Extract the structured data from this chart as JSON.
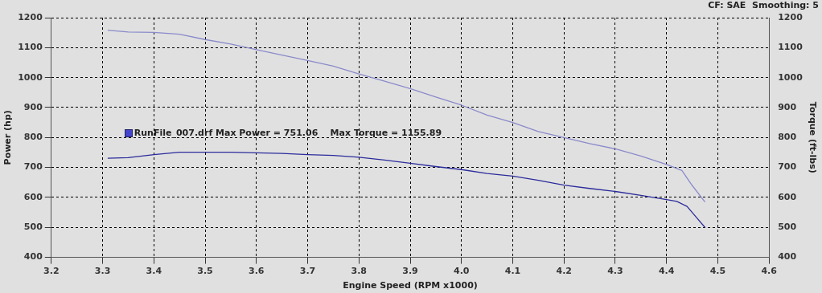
{
  "chart_data": {
    "type": "line",
    "xlabel": "Engine Speed (RPM x1000)",
    "ylabel": "Power (hp)",
    "y2label": "Torque (ft-lbs)",
    "annotations": [
      "CF: SAE  Smoothing: 5",
      "RunFile_007.drf Max Power = 751.06    Max Torque = 1155.89"
    ],
    "series": [
      {
        "color": "#2b2b9c",
        "x": [
          3.31,
          3.35,
          3.4,
          3.45,
          3.5,
          3.55,
          3.6,
          3.65,
          3.7,
          3.75,
          3.8,
          3.85,
          3.9,
          3.95,
          4.0,
          4.05,
          4.1,
          4.15,
          4.2,
          4.25,
          4.3,
          4.35,
          4.4,
          4.42,
          4.44,
          4.46,
          4.475
        ],
        "values": [
          731,
          733,
          743,
          751,
          751,
          751,
          749,
          747,
          743,
          740,
          734,
          725,
          714,
          703,
          693,
          680,
          671,
          657,
          641,
          630,
          620,
          607,
          593,
          587,
          570,
          530,
          500
        ]
      },
      {
        "color": "#8a8acc",
        "axis": "y2",
        "x": [
          3.31,
          3.35,
          3.4,
          3.45,
          3.5,
          3.55,
          3.6,
          3.65,
          3.7,
          3.75,
          3.8,
          3.85,
          3.9,
          3.95,
          4.0,
          4.05,
          4.1,
          4.15,
          4.2,
          4.25,
          4.3,
          4.35,
          4.4,
          4.43,
          4.45,
          4.475
        ],
        "values": [
          1158,
          1152,
          1151,
          1145,
          1127,
          1112,
          1093,
          1075,
          1057,
          1038,
          1012,
          988,
          963,
          935,
          908,
          875,
          850,
          820,
          800,
          780,
          762,
          738,
          710,
          690,
          640,
          585
        ]
      }
    ],
    "xlim": [
      3.2,
      4.6
    ],
    "xticks": [
      3.2,
      3.3,
      3.4,
      3.5,
      3.6,
      3.7,
      3.8,
      3.9,
      {
        "value": 4,
        "label": "4.0"
      },
      4.1,
      4.2,
      4.3,
      4.4,
      4.5,
      4.6
    ],
    "ylim": [
      400,
      1200
    ],
    "yticks": [
      400,
      500,
      600,
      700,
      800,
      900,
      1000,
      1100,
      1200
    ],
    "y2lim": [
      400,
      1200
    ],
    "y2ticks": [
      400,
      500,
      600,
      700,
      800,
      900,
      1000,
      1100,
      1200
    ],
    "grid": true,
    "legend": false,
    "marker": "none",
    "line_style": "solid"
  }
}
